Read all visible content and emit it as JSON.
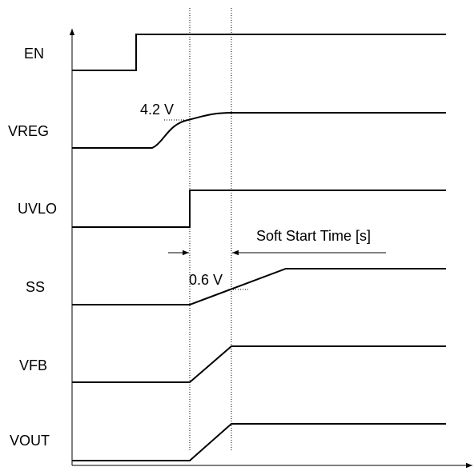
{
  "signals": [
    {
      "label": "EN"
    },
    {
      "label": "VREG"
    },
    {
      "label": "UVLO"
    },
    {
      "label": "SS"
    },
    {
      "label": "VFB"
    },
    {
      "label": "VOUT"
    }
  ],
  "annotations": {
    "vreg_level": "4.2 V",
    "ss_level": "0.6 V",
    "soft_start": "Soft Start Time [s]"
  }
}
